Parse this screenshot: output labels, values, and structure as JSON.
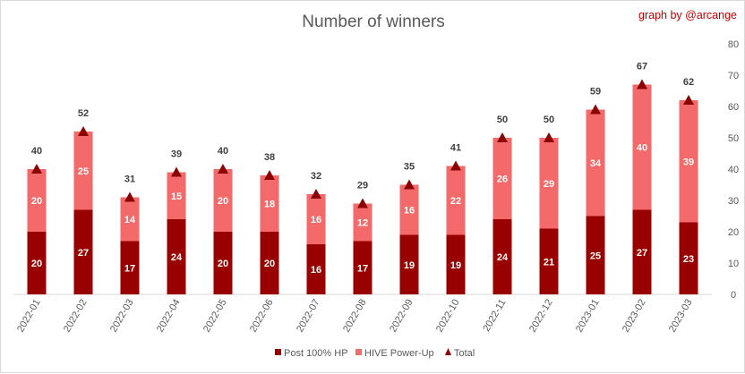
{
  "chart_data": {
    "type": "bar",
    "title": "Number of winners",
    "credit": "graph by @arcange",
    "categories": [
      "2022-01",
      "2022-02",
      "2022-03",
      "2022-04",
      "2022-05",
      "2022-06",
      "2022-07",
      "2022-08",
      "2022-09",
      "2022-10",
      "2022-11",
      "2022-12",
      "2023-01",
      "2023-02",
      "2023-03"
    ],
    "series": [
      {
        "name": "Post 100% HP",
        "color": "#990000",
        "values": [
          20,
          27,
          17,
          24,
          20,
          20,
          16,
          17,
          19,
          19,
          24,
          21,
          25,
          27,
          23
        ]
      },
      {
        "name": "HIVE Power-Up",
        "color": "#f46a6a",
        "values": [
          20,
          25,
          14,
          15,
          20,
          18,
          16,
          12,
          16,
          22,
          26,
          29,
          34,
          40,
          39
        ]
      },
      {
        "name": "Total",
        "color": "#8b0000",
        "marker": "triangle",
        "values": [
          40,
          52,
          31,
          39,
          40,
          38,
          32,
          29,
          35,
          41,
          50,
          50,
          59,
          67,
          62
        ]
      }
    ],
    "stacked": true,
    "ylim": [
      0,
      80
    ],
    "yticks": [
      0,
      10,
      20,
      30,
      40,
      50,
      60,
      70,
      80
    ],
    "y_axis_side": "right",
    "grid": false,
    "legend_position": "bottom"
  }
}
